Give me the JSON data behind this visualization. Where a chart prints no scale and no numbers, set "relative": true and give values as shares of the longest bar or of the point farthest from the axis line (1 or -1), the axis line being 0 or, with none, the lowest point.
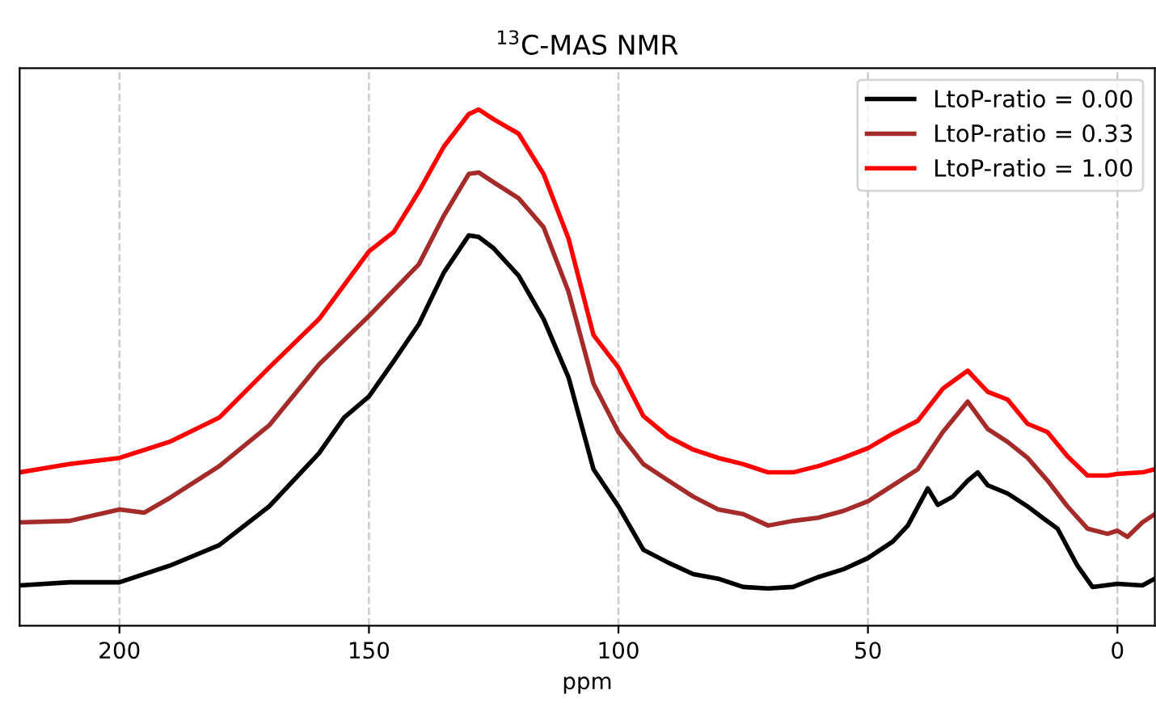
{
  "chart_data": {
    "type": "line",
    "title": "$^{13}$C-MAS NMR",
    "xlabel": "ppm",
    "relative": true,
    "xlim": [
      220,
      -7.5
    ],
    "xticks": [
      200,
      150,
      100,
      50,
      0
    ],
    "grid": "x",
    "legend": "top right",
    "tick_labels": "x",
    "series": [
      {
        "name": "LtoP-ratio = 0.00",
        "color": "#000000",
        "x": [
          220,
          210,
          200,
          190,
          180,
          170,
          160,
          155,
          150,
          145,
          140,
          135,
          130,
          128,
          125,
          120,
          115,
          110,
          105,
          100,
          95,
          90,
          85,
          80,
          75,
          70,
          65,
          60,
          55,
          50,
          45,
          42,
          38,
          36,
          33,
          30,
          28,
          26,
          22,
          18,
          15,
          12,
          8,
          5,
          0,
          -5,
          -7.5
        ],
        "values": [
          0.078,
          0.084,
          0.084,
          0.116,
          0.156,
          0.231,
          0.334,
          0.403,
          0.444,
          0.513,
          0.584,
          0.684,
          0.756,
          0.753,
          0.731,
          0.678,
          0.594,
          0.481,
          0.303,
          0.231,
          0.147,
          0.122,
          0.1,
          0.091,
          0.075,
          0.072,
          0.075,
          0.094,
          0.109,
          0.131,
          0.163,
          0.194,
          0.266,
          0.234,
          0.25,
          0.281,
          0.297,
          0.272,
          0.256,
          0.231,
          0.209,
          0.188,
          0.116,
          0.075,
          0.081,
          0.078,
          0.091
        ]
      },
      {
        "name": "LtoP-ratio = 0.33",
        "color": "#a52a2a",
        "x": [
          220,
          210,
          200,
          195,
          190,
          180,
          170,
          160,
          150,
          140,
          135,
          130,
          128,
          125,
          120,
          115,
          110,
          105,
          100,
          95,
          90,
          85,
          80,
          75,
          70,
          65,
          60,
          55,
          50,
          45,
          40,
          35,
          30,
          26,
          22,
          18,
          14,
          10,
          6,
          2,
          0,
          -2,
          -5,
          -7.5
        ],
        "values": [
          0.2,
          0.203,
          0.225,
          0.219,
          0.247,
          0.309,
          0.388,
          0.506,
          0.6,
          0.7,
          0.794,
          0.875,
          0.878,
          0.859,
          0.828,
          0.772,
          0.647,
          0.469,
          0.375,
          0.313,
          0.281,
          0.25,
          0.225,
          0.216,
          0.194,
          0.203,
          0.209,
          0.222,
          0.241,
          0.272,
          0.303,
          0.375,
          0.434,
          0.381,
          0.356,
          0.325,
          0.281,
          0.231,
          0.188,
          0.178,
          0.184,
          0.172,
          0.2,
          0.216
        ]
      },
      {
        "name": "LtoP-ratio = 1.00",
        "color": "#ff0000",
        "x": [
          220,
          210,
          200,
          190,
          180,
          170,
          160,
          150,
          145,
          140,
          135,
          130,
          128,
          125,
          120,
          115,
          110,
          105,
          100,
          95,
          90,
          85,
          80,
          75,
          70,
          65,
          60,
          55,
          50,
          45,
          40,
          35,
          30,
          26,
          22,
          18,
          14,
          10,
          6,
          2,
          0,
          -5,
          -7.5
        ],
        "values": [
          0.297,
          0.313,
          0.325,
          0.356,
          0.403,
          0.5,
          0.594,
          0.725,
          0.763,
          0.841,
          0.928,
          0.991,
          1,
          0.981,
          0.953,
          0.875,
          0.75,
          0.563,
          0.5,
          0.406,
          0.366,
          0.341,
          0.325,
          0.313,
          0.297,
          0.297,
          0.309,
          0.325,
          0.344,
          0.372,
          0.397,
          0.459,
          0.494,
          0.453,
          0.438,
          0.391,
          0.375,
          0.328,
          0.291,
          0.291,
          0.294,
          0.297,
          0.303
        ]
      }
    ]
  }
}
